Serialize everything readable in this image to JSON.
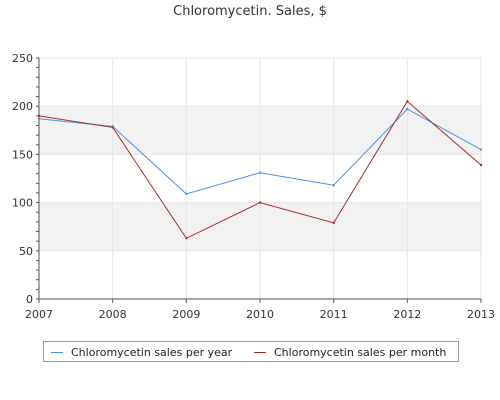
{
  "chart_data": {
    "type": "line",
    "title": "Chloromycetin. Sales, $",
    "xlabel": "",
    "ylabel": "",
    "categories": [
      "2007",
      "2008",
      "2009",
      "2010",
      "2011",
      "2012",
      "2013"
    ],
    "ylim": [
      0,
      250
    ],
    "yticks": [
      "0",
      "50",
      "100",
      "150",
      "200",
      "250"
    ],
    "grid": "horizontal bands",
    "legend_position": "bottom",
    "series": [
      {
        "name": "Chloromycetin sales per year",
        "color": "#4a90e2",
        "values": [
          187,
          179,
          109,
          131,
          118,
          197,
          155
        ]
      },
      {
        "name": "Chloromycetin sales per month",
        "color": "#a52a2a",
        "values": [
          190,
          178,
          63,
          100,
          79,
          205,
          139
        ]
      }
    ]
  }
}
